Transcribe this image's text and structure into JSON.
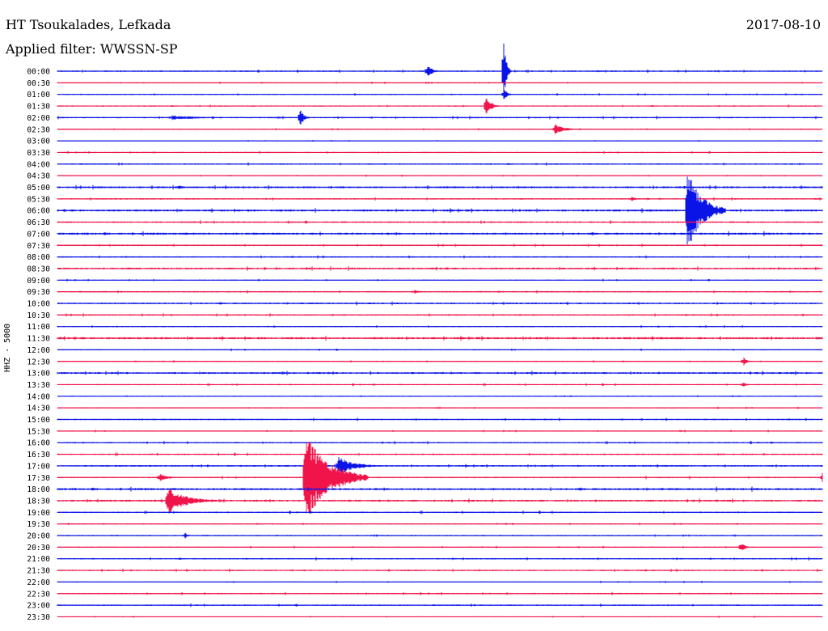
{
  "header": {
    "station": "HT Tsoukalades, Lefkada",
    "filter": "Applied filter: WWSSN-SP",
    "date": "2017-08-10",
    "channel": "HHZ - 5000"
  },
  "colors": {
    "even_trace": "#0a14e6",
    "odd_trace": "#f0144a"
  },
  "chart_data": {
    "type": "line",
    "title": "",
    "xlabel": "",
    "ylabel": "HHZ - 5000",
    "row_labels": [
      "00:00",
      "00:30",
      "01:00",
      "01:30",
      "02:00",
      "02:30",
      "03:00",
      "03:30",
      "04:00",
      "04:30",
      "05:00",
      "05:30",
      "06:00",
      "06:30",
      "07:00",
      "07:30",
      "08:00",
      "08:30",
      "09:00",
      "09:30",
      "10:00",
      "10:30",
      "11:00",
      "11:30",
      "12:00",
      "12:30",
      "13:00",
      "13:30",
      "14:00",
      "14:30",
      "15:00",
      "15:30",
      "16:00",
      "16:30",
      "17:00",
      "17:30",
      "18:00",
      "18:30",
      "19:00",
      "19:30",
      "20:00",
      "20:30",
      "21:00",
      "21:30",
      "22:00",
      "22:30",
      "23:00",
      "23:30"
    ],
    "noise": [
      0.6,
      0.4,
      0.5,
      0.5,
      0.6,
      0.4,
      0.3,
      0.5,
      0.6,
      0.4,
      0.8,
      0.6,
      0.9,
      0.7,
      0.9,
      0.6,
      0.6,
      0.8,
      0.5,
      0.6,
      0.7,
      0.6,
      0.5,
      0.9,
      0.5,
      0.5,
      0.8,
      0.5,
      0.4,
      0.5,
      0.6,
      0.5,
      0.6,
      0.6,
      0.7,
      0.6,
      0.9,
      0.8,
      0.6,
      0.5,
      0.5,
      0.5,
      0.6,
      0.6,
      0.4,
      0.6,
      0.6,
      0.4
    ],
    "events": [
      {
        "row": 0,
        "minute": 14.5,
        "amp": 9,
        "dur": 0.5
      },
      {
        "row": 0,
        "minute": 17.5,
        "amp": 38,
        "dur": 0.3
      },
      {
        "row": 2,
        "minute": 17.5,
        "amp": 8,
        "dur": 0.4
      },
      {
        "row": 3,
        "minute": 16.8,
        "amp": 16,
        "dur": 0.5
      },
      {
        "row": 4,
        "minute": 9.5,
        "amp": 13,
        "dur": 0.4
      },
      {
        "row": 4,
        "minute": 4.5,
        "amp": 3,
        "dur": 3.0
      },
      {
        "row": 5,
        "minute": 19.5,
        "amp": 7,
        "dur": 1.0
      },
      {
        "row": 10,
        "minute": 4.7,
        "amp": 3,
        "dur": 0.8
      },
      {
        "row": 11,
        "minute": 22.5,
        "amp": 3,
        "dur": 0.6
      },
      {
        "row": 12,
        "minute": 24.7,
        "amp": 55,
        "dur": 1.5
      },
      {
        "row": 19,
        "minute": 14.0,
        "amp": 3,
        "dur": 0.6
      },
      {
        "row": 25,
        "minute": 26.9,
        "amp": 6,
        "dur": 0.4
      },
      {
        "row": 27,
        "minute": 26.9,
        "amp": 5,
        "dur": 0.3
      },
      {
        "row": 34,
        "minute": 11.0,
        "amp": 12,
        "dur": 1.8
      },
      {
        "row": 35,
        "minute": 9.7,
        "amp": 58,
        "dur": 2.5
      },
      {
        "row": 35,
        "minute": 30.0,
        "amp": 9,
        "dur": 1.2
      },
      {
        "row": 35,
        "minute": 4.0,
        "amp": 5,
        "dur": 1.0
      },
      {
        "row": 37,
        "minute": 4.3,
        "amp": 17,
        "dur": 2.0
      },
      {
        "row": 40,
        "minute": 5.0,
        "amp": 4,
        "dur": 0.3
      },
      {
        "row": 41,
        "minute": 26.8,
        "amp": 7,
        "dur": 0.4
      }
    ]
  }
}
